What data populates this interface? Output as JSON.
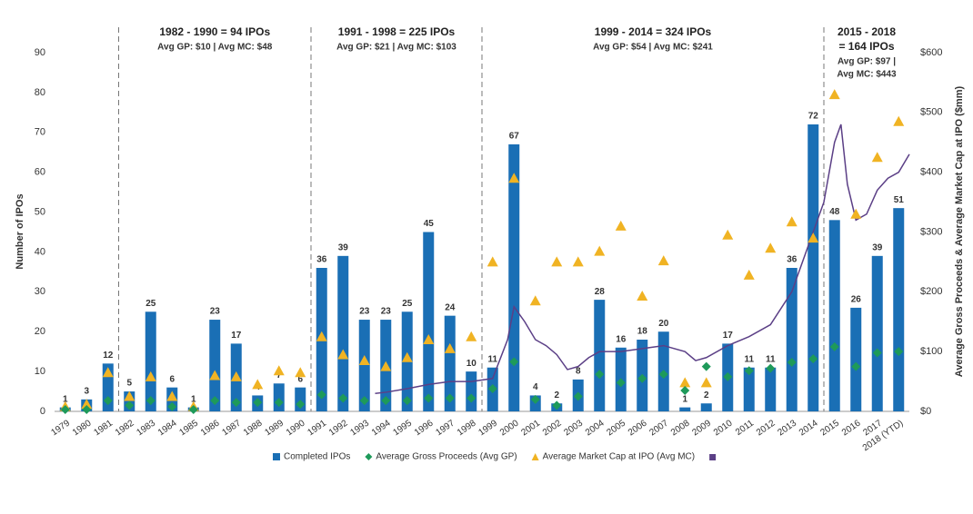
{
  "chart_data": {
    "type": "combo",
    "y_label": "Number of IPOs",
    "y2_label": "Average Gross Proceeds & Average Market Cap at IPO ($mm)",
    "categories": [
      "1979",
      "1980",
      "1981",
      "1982",
      "1983",
      "1984",
      "1985",
      "1986",
      "1987",
      "1988",
      "1989",
      "1990",
      "1991",
      "1992",
      "1993",
      "1994",
      "1995",
      "1996",
      "1997",
      "1998",
      "1999",
      "2000",
      "2001",
      "2002",
      "2003",
      "2004",
      "2005",
      "2006",
      "2007",
      "2008",
      "2009",
      "2010",
      "2011",
      "2012",
      "2013",
      "2014",
      "2015",
      "2016",
      "2017",
      "2018 (YTD)"
    ],
    "series": [
      {
        "name": "Completed IPOs",
        "kind": "bar",
        "color": "#1a6fb5",
        "values": [
          1,
          3,
          12,
          5,
          25,
          6,
          1,
          23,
          17,
          4,
          7,
          6,
          36,
          39,
          23,
          23,
          25,
          45,
          24,
          10,
          11,
          67,
          4,
          2,
          8,
          28,
          16,
          18,
          20,
          1,
          2,
          17,
          11,
          11,
          36,
          72,
          48,
          26,
          39,
          51
        ]
      },
      {
        "name": "Average Gross Proceeds (Avg GP)",
        "kind": "diamond",
        "color": "#1e9a5a",
        "axis": "y2",
        "values": [
          3,
          3,
          18,
          10,
          18,
          8,
          3,
          18,
          15,
          15,
          15,
          12,
          28,
          22,
          18,
          18,
          18,
          22,
          22,
          22,
          38,
          83,
          20,
          10,
          25,
          62,
          48,
          55,
          62,
          35,
          75,
          58,
          68,
          72,
          82,
          88,
          108,
          75,
          98,
          100
        ]
      },
      {
        "name": "Average Market Cap at IPO (Avg MC)",
        "kind": "triangle",
        "color": "#f0b323",
        "axis": "y2",
        "values": [
          8,
          12,
          65,
          25,
          58,
          25,
          8,
          60,
          58,
          45,
          68,
          65,
          125,
          95,
          85,
          75,
          90,
          120,
          105,
          125,
          250,
          390,
          185,
          250,
          250,
          268,
          310,
          193,
          252,
          48,
          48,
          295,
          228,
          273,
          317,
          290,
          530,
          330,
          425,
          485
        ]
      },
      {
        "kind": "line",
        "color": "#5b3f86",
        "axis": "y2",
        "x": [
          1993.5,
          1994,
          1995,
          1996,
          1997,
          1998,
          1999,
          1999.7,
          2000,
          2000.5,
          2001,
          2001.5,
          2002,
          2002.5,
          2003,
          2003.5,
          2004,
          2005,
          2006,
          2007,
          2008,
          2008.5,
          2009,
          2010,
          2011,
          2012,
          2013,
          2013.5,
          2014,
          2014.5,
          2015,
          2015.3,
          2015.6,
          2016,
          2016.5,
          2017,
          2017.5,
          2018,
          2018.5
        ],
        "values": [
          30,
          32,
          38,
          45,
          50,
          50,
          55,
          120,
          175,
          150,
          120,
          110,
          95,
          70,
          75,
          90,
          100,
          100,
          105,
          110,
          100,
          85,
          90,
          110,
          125,
          145,
          200,
          250,
          300,
          350,
          450,
          480,
          380,
          320,
          330,
          370,
          390,
          400,
          430
        ]
      }
    ],
    "annotations": [
      {
        "title": [
          "1982 - 1990 = 94 IPOs"
        ],
        "subtitle": [
          "Avg GP: $10 | Avg MC: $48"
        ]
      },
      {
        "title": [
          "1991 - 1998 = 225 IPOs"
        ],
        "subtitle": [
          "Avg GP: $21 | Avg MC: $103"
        ]
      },
      {
        "title": [
          "1999 - 2014 = 324 IPOs"
        ],
        "subtitle": [
          "Avg GP: $54 | Avg MC: $241"
        ]
      },
      {
        "title": [
          "2015 - 2018",
          "= 164 IPOs"
        ],
        "subtitle": [
          "Avg GP: $97 |",
          "Avg MC: $443"
        ]
      }
    ],
    "ylim": [
      0,
      90
    ],
    "yticks": [
      0,
      10,
      20,
      30,
      40,
      50,
      60,
      70,
      80,
      90
    ],
    "y2lim": [
      0,
      600
    ],
    "y2ticks": [
      {
        "value": 0,
        "label": "$0"
      },
      {
        "value": 100,
        "label": "$100"
      },
      {
        "value": 200,
        "label": "$200"
      },
      {
        "value": 300,
        "label": "$300"
      },
      {
        "value": 400,
        "label": "$400"
      },
      {
        "value": 500,
        "label": "$500"
      },
      {
        "value": 600,
        "label": "$600"
      }
    ]
  }
}
